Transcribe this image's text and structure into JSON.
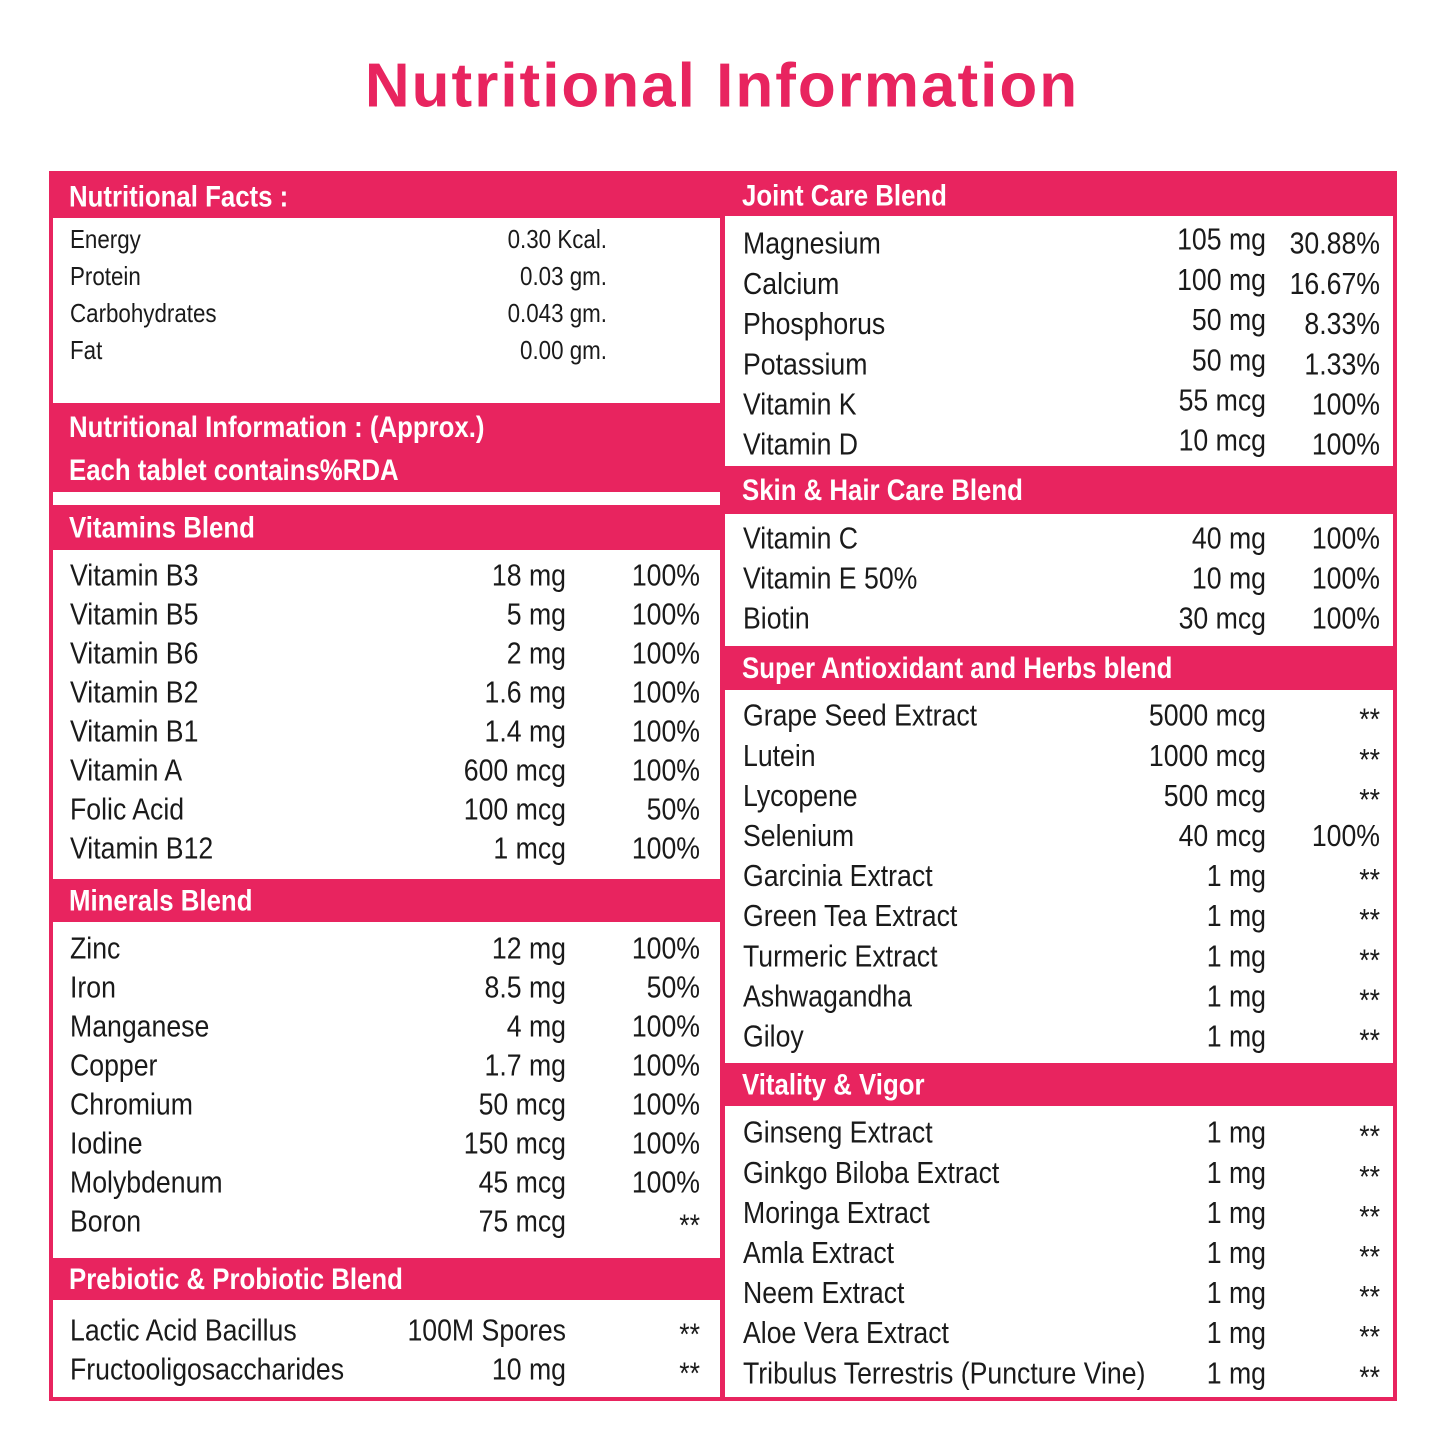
{
  "title": "Nutritional Information",
  "info_header": [
    "Nutritional Information : (Approx.)",
    "Each tablet contains%RDA"
  ],
  "sections": [
    {
      "heading": "Nutritional Facts :",
      "rows": [
        [
          "Energy",
          "0.30 Kcal."
        ],
        [
          "Protein",
          "0.03 gm."
        ],
        [
          "Carbohydrates",
          "0.043 gm."
        ],
        [
          "Fat",
          "0.00 gm."
        ]
      ]
    },
    {
      "heading": "Vitamins Blend",
      "rows": [
        [
          "Vitamin B3",
          "18 mg",
          "100%"
        ],
        [
          "Vitamin B5",
          "5 mg",
          "100%"
        ],
        [
          "Vitamin B6",
          "2 mg",
          "100%"
        ],
        [
          "Vitamin B2",
          "1.6 mg",
          "100%"
        ],
        [
          "Vitamin B1",
          "1.4 mg",
          "100%"
        ],
        [
          "Vitamin A",
          "600 mcg",
          "100%"
        ],
        [
          "Folic Acid",
          "100 mcg",
          "50%"
        ],
        [
          "Vitamin B12",
          "1 mcg",
          "100%"
        ]
      ]
    },
    {
      "heading": "Minerals Blend",
      "rows": [
        [
          "Zinc",
          "12 mg",
          "100%"
        ],
        [
          "Iron",
          "8.5 mg",
          "50%"
        ],
        [
          "Manganese",
          "4 mg",
          "100%"
        ],
        [
          "Copper",
          "1.7 mg",
          "100%"
        ],
        [
          "Chromium",
          "50 mcg",
          "100%"
        ],
        [
          "Iodine",
          "150 mcg",
          "100%"
        ],
        [
          "Molybdenum",
          "45 mcg",
          "100%"
        ],
        [
          "Boron",
          "75 mcg",
          "**"
        ]
      ]
    },
    {
      "heading": "Prebiotic & Probiotic Blend",
      "rows": [
        [
          "Lactic Acid Bacillus",
          "100M Spores",
          "**"
        ],
        [
          "Fructooligosaccharides",
          "10 mg",
          "**"
        ]
      ]
    },
    {
      "heading": "Joint Care Blend",
      "rows": [
        [
          "Magnesium",
          "105 mg",
          "30.88%"
        ],
        [
          "Calcium",
          "100 mg",
          "16.67%"
        ],
        [
          "Phosphorus",
          "50 mg",
          "8.33%"
        ],
        [
          "Potassium",
          "50 mg",
          "1.33%"
        ],
        [
          "Vitamin K",
          "55 mcg",
          "100%"
        ],
        [
          "Vitamin D",
          "10 mcg",
          "100%"
        ]
      ]
    },
    {
      "heading": "Skin & Hair Care Blend",
      "rows": [
        [
          "Vitamin C",
          "40 mg",
          "100%"
        ],
        [
          "Vitamin E 50%",
          "10 mg",
          "100%"
        ],
        [
          "Biotin",
          "30 mcg",
          "100%"
        ]
      ]
    },
    {
      "heading": "Super Antioxidant and Herbs blend",
      "rows": [
        [
          "Grape Seed Extract",
          "5000 mcg",
          "**"
        ],
        [
          "Lutein",
          "1000 mcg",
          "**"
        ],
        [
          "Lycopene",
          "500 mcg",
          "**"
        ],
        [
          "Selenium",
          "40 mcg",
          "100%"
        ],
        [
          "Garcinia Extract",
          "1 mg",
          "**"
        ],
        [
          "Green Tea Extract",
          "1 mg",
          "**"
        ],
        [
          "Turmeric Extract",
          "1 mg",
          "**"
        ],
        [
          "Ashwagandha",
          "1 mg",
          "**"
        ],
        [
          "Giloy",
          "1 mg",
          "**"
        ]
      ]
    },
    {
      "heading": "Vitality & Vigor",
      "rows": [
        [
          "Ginseng Extract",
          "1 mg",
          "**"
        ],
        [
          "Ginkgo Biloba Extract",
          "1 mg",
          "**"
        ],
        [
          "Moringa Extract",
          "1 mg",
          "**"
        ],
        [
          "Amla Extract",
          "1 mg",
          "**"
        ],
        [
          "Neem Extract",
          "1 mg",
          "**"
        ],
        [
          "Aloe Vera Extract",
          "1 mg",
          "**"
        ],
        [
          "Tribulus Terrestris (Puncture Vine)",
          "1 mg",
          "**"
        ]
      ]
    }
  ]
}
